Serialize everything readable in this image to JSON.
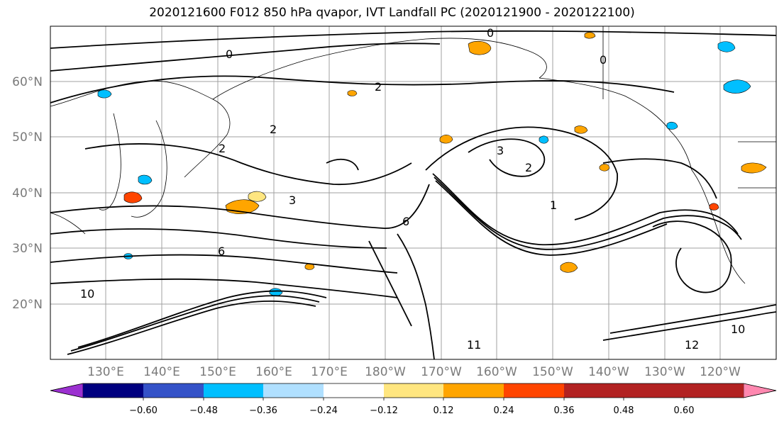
{
  "title": "2020121600 F012 850 hPa qvapor, IVT Landfall PC (2020121900 - 2020122100)",
  "lon_ticks": [
    "130°E",
    "140°E",
    "150°E",
    "160°E",
    "170°E",
    "180°W",
    "170°W",
    "160°W",
    "150°W",
    "140°W",
    "130°W",
    "120°W"
  ],
  "lat_ticks": [
    "60°N",
    "50°N",
    "40°N",
    "30°N",
    "20°N"
  ],
  "colorbar": {
    "colors": [
      "#9b30d0",
      "#00007f",
      "#3452c8",
      "#00bfff",
      "#b0e0ff",
      "#ffffff",
      "#ffe680",
      "#ffa500",
      "#ff4500",
      "#b22222",
      "#ff88b0"
    ],
    "labels": [
      "−0.60",
      "−0.48",
      "−0.36",
      "−0.24",
      "−0.12",
      "0.12",
      "0.24",
      "0.36",
      "0.48",
      "0.60"
    ]
  },
  "contour_labels": [
    "0",
    "0",
    "0",
    "2",
    "2",
    "2",
    "2",
    "3",
    "3",
    "6",
    "6",
    "10",
    "11",
    "12",
    "10",
    "1"
  ]
}
